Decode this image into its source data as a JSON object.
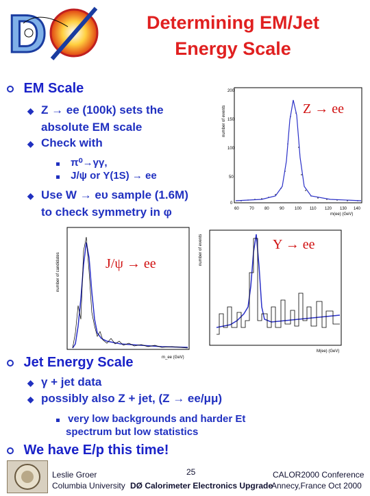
{
  "header": {
    "title_line1": "Determining EM/Jet",
    "title_line2": "Energy Scale",
    "logo_text": "DØ"
  },
  "em_scale": {
    "heading": "EM Scale",
    "bullet1": "Z → ee (100k) sets the",
    "bullet1_cont": "absolute EM scale",
    "bullet2": "Check with",
    "sub1": "π⁰→γγ,",
    "sub2": "J/ψ or Υ(1S) → ee",
    "bullet3": "Use W → eυ sample (1.6M)",
    "bullet3_cont": "to check symmetry in φ"
  },
  "plots": {
    "z_label": "Z → ee",
    "z_ylabel": "number of events",
    "z_xlabel": "m(ee) (GeV)",
    "z_yticks": [
      "200",
      "150",
      "100",
      "50",
      "0"
    ],
    "z_xticks": [
      "60",
      "70",
      "80",
      "90",
      "100",
      "110",
      "120",
      "130",
      "140"
    ],
    "jpsi_label": "J/ψ → ee",
    "jpsi_ylabel": "number of candidates",
    "jpsi_xlabel": "m_ee (GeV)",
    "upsilon_label": "Υ → ee",
    "upsilon_ylabel": "number of events",
    "upsilon_xlabel": "M(ee) (GeV)"
  },
  "jet_scale": {
    "heading": "Jet Energy Scale",
    "bullet1": "γ + jet data",
    "bullet2": "possibly also Z + jet, (Z → ee/μμ)",
    "sub1": "very low backgrounds and harder Et",
    "sub1_cont": "spectrum but low statistics"
  },
  "ep": {
    "heading": "We have E/p this time!"
  },
  "footer": {
    "author": "Leslie Groer",
    "affiliation": "Columbia University",
    "page": "25",
    "talk": "DØ Calorimeter Electronics Upgrade",
    "conference": "CALOR2000 Conference",
    "location": "Annecy,France Oct 2000"
  },
  "colors": {
    "title": "#e02020",
    "text": "#2030c0",
    "fit_curve": "#2a30c8",
    "label": "#d01010"
  }
}
